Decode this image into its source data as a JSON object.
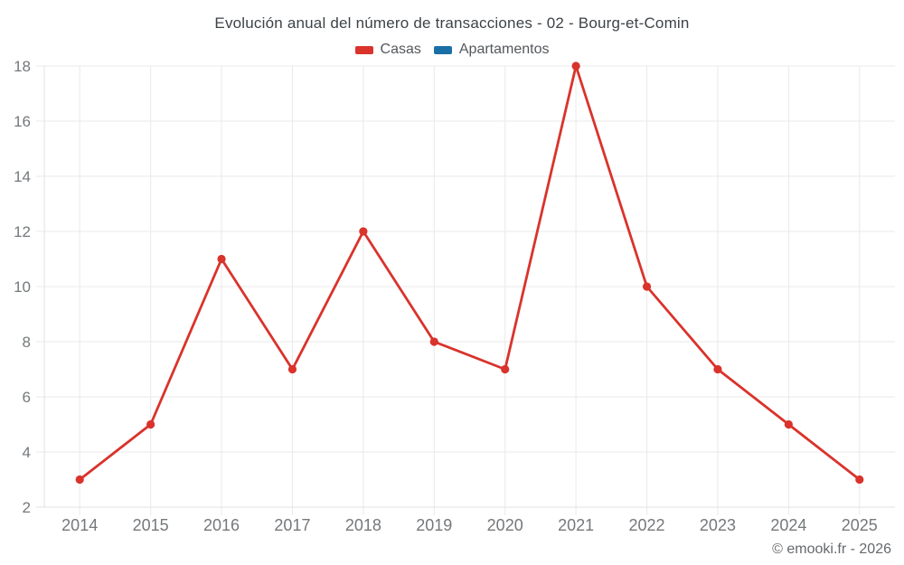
{
  "chart_data": {
    "type": "line",
    "title": "Evolución anual del número de transacciones - 02 - Bourg-et-Comin",
    "categories": [
      "2014",
      "2015",
      "2016",
      "2017",
      "2018",
      "2019",
      "2020",
      "2021",
      "2022",
      "2023",
      "2024",
      "2025"
    ],
    "series": [
      {
        "name": "Casas",
        "color": "#d9332b",
        "values": [
          3,
          5,
          11,
          7,
          12,
          8,
          7,
          18,
          10,
          7,
          5,
          3
        ]
      },
      {
        "name": "Apartamentos",
        "color": "#1a70a6",
        "values": []
      }
    ],
    "ylim": [
      2,
      18
    ],
    "yticks": [
      2,
      4,
      6,
      8,
      10,
      12,
      14,
      16,
      18
    ],
    "grid": true,
    "legend_position": "top"
  },
  "footer": {
    "text": "© emooki.fr - 2026"
  }
}
